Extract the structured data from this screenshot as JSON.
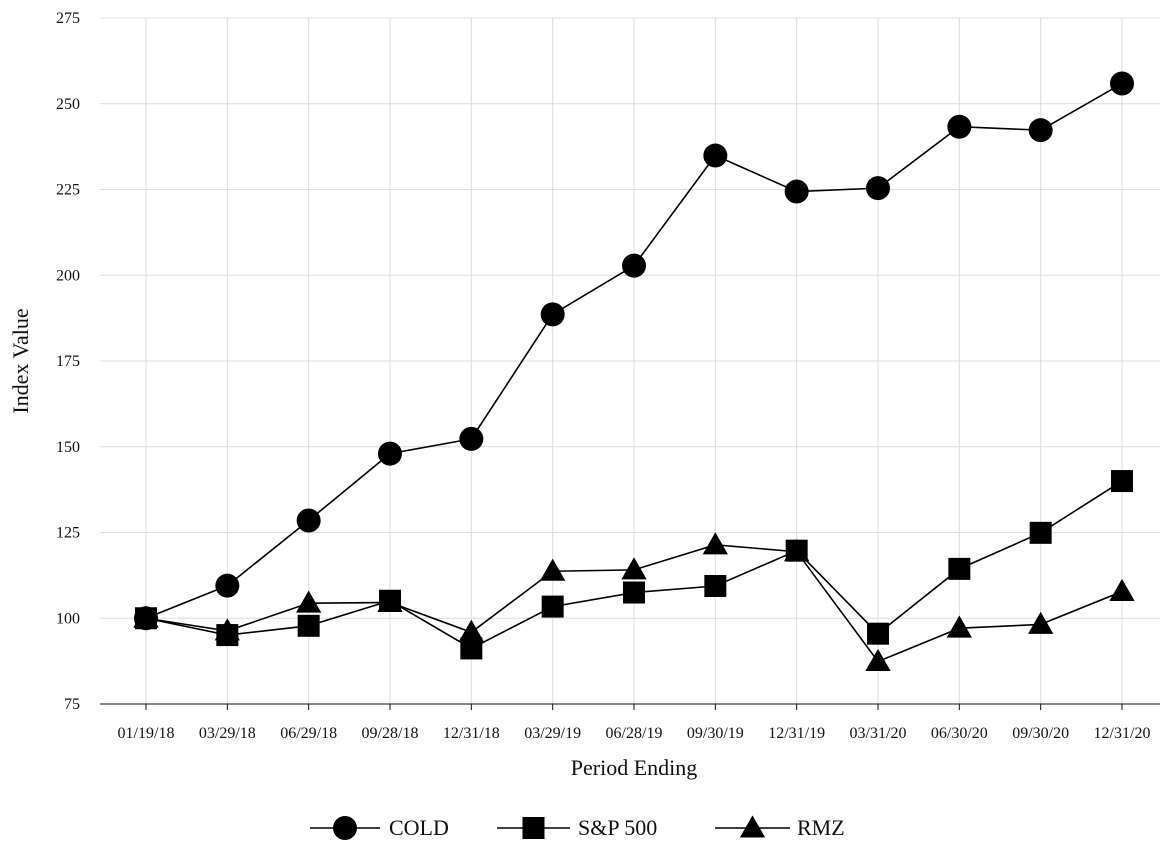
{
  "chart_data": {
    "type": "line",
    "title": "",
    "xlabel": "Period Ending",
    "ylabel": "Index Value",
    "categories": [
      "01/19/18",
      "03/29/18",
      "06/29/18",
      "09/28/18",
      "12/31/18",
      "03/29/19",
      "06/28/19",
      "09/30/19",
      "12/31/19",
      "03/31/20",
      "06/30/20",
      "09/30/20",
      "12/31/20"
    ],
    "ylim": [
      75,
      275
    ],
    "yticks": [
      75,
      100,
      125,
      150,
      175,
      200,
      225,
      250,
      275
    ],
    "grid": true,
    "legend_position": "bottom-center",
    "series": [
      {
        "name": "COLD",
        "marker": "circle",
        "color": "#000000",
        "values": [
          100,
          109.5,
          128.5,
          148,
          152.3,
          188.6,
          202.8,
          234.9,
          224.4,
          225.4,
          243.3,
          242.3,
          255.9
        ]
      },
      {
        "name": "S&P 500",
        "marker": "square",
        "color": "#000000",
        "values": [
          100,
          95.1,
          97.8,
          105.1,
          91.2,
          103.4,
          107.5,
          109.4,
          119.7,
          95.5,
          114.4,
          124.9,
          140
        ]
      },
      {
        "name": "RMZ",
        "marker": "triangle",
        "color": "#000000",
        "values": [
          100,
          96.3,
          104.4,
          104.6,
          95.9,
          113.7,
          114.1,
          121.4,
          119.4,
          87.4,
          97.1,
          98.2,
          107.8
        ]
      }
    ]
  }
}
